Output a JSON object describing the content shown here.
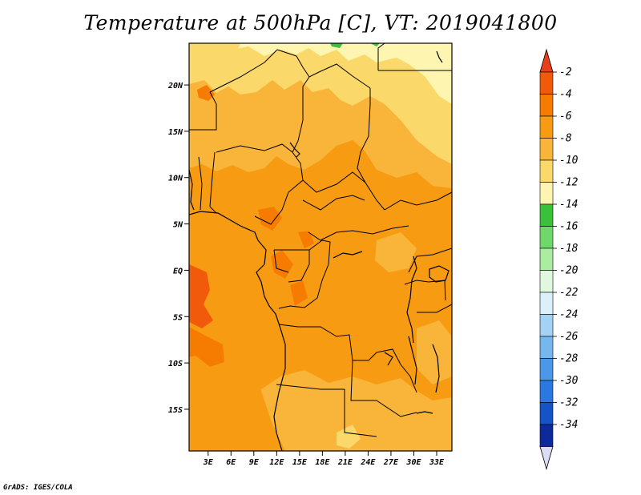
{
  "title": "Temperature at 500hPa [C], VT: 2019041800",
  "credit": "GrADS: IGES/COLA",
  "axes": {
    "lat_ticks": [
      {
        "label": "20N",
        "value": 20
      },
      {
        "label": "15N",
        "value": 15
      },
      {
        "label": "10N",
        "value": 10
      },
      {
        "label": "5N",
        "value": 5
      },
      {
        "label": "EQ",
        "value": 0
      },
      {
        "label": "5S",
        "value": -5
      },
      {
        "label": "10S",
        "value": -10
      },
      {
        "label": "15S",
        "value": -15
      }
    ],
    "lon_ticks": [
      {
        "label": "3E",
        "value": 3
      },
      {
        "label": "6E",
        "value": 6
      },
      {
        "label": "9E",
        "value": 9
      },
      {
        "label": "12E",
        "value": 12
      },
      {
        "label": "15E",
        "value": 15
      },
      {
        "label": "18E",
        "value": 18
      },
      {
        "label": "21E",
        "value": 21
      },
      {
        "label": "24E",
        "value": 24
      },
      {
        "label": "27E",
        "value": 27
      },
      {
        "label": "30E",
        "value": 30
      },
      {
        "label": "33E",
        "value": 33
      }
    ],
    "lon_range": [
      0.5,
      35
    ],
    "lat_range": [
      -19.5,
      24.5
    ]
  },
  "colorbar": {
    "levels": [
      {
        "label": "-2",
        "color": "#f05a0a"
      },
      {
        "label": "-4",
        "color": "#f57c00"
      },
      {
        "label": "-6",
        "color": "#f79b12"
      },
      {
        "label": "-8",
        "color": "#f9b43a"
      },
      {
        "label": "-10",
        "color": "#fbd86a"
      },
      {
        "label": "-12",
        "color": "#fef6b0"
      },
      {
        "label": "-14",
        "color": "#39c13a"
      },
      {
        "label": "-16",
        "color": "#6fd86b"
      },
      {
        "label": "-18",
        "color": "#aaeda0"
      },
      {
        "label": "-20",
        "color": "#e1f8e0"
      },
      {
        "label": "-22",
        "color": "#dcf0fa"
      },
      {
        "label": "-24",
        "color": "#a4d2f5"
      },
      {
        "label": "-26",
        "color": "#76b7ef"
      },
      {
        "label": "-28",
        "color": "#4b98e8"
      },
      {
        "label": "-30",
        "color": "#2b78e0"
      },
      {
        "label": "-32",
        "color": "#1554c8"
      },
      {
        "label": "-34",
        "color": "#0c2a9a"
      }
    ],
    "top_color": "#e8401a",
    "bottom_segment_color": "#0a1060",
    "bottom_color": "#dcdcf5"
  }
}
